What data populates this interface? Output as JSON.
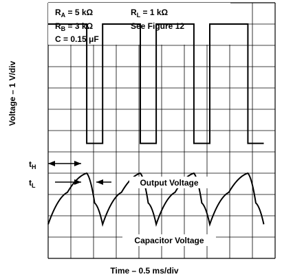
{
  "chart_data": {
    "type": "line",
    "title": "",
    "xlabel": "Time – 0.5 ms/div",
    "ylabel": "Voltage – 1 V/div",
    "grid": true,
    "divisions": {
      "x": 10,
      "y": 12
    },
    "conditions": {
      "ra": {
        "sym": "R",
        "sub": "A",
        "value": " = 5 kΩ"
      },
      "rb": {
        "sym": "R",
        "sub": "B",
        "value": " = 3 kΩ"
      },
      "c": "C = 0.15 μF",
      "rl": {
        "sym": "R",
        "sub": "L",
        "value": " = 1 kΩ"
      },
      "fig": "See Figure 12"
    },
    "annotations": {
      "th": {
        "sym": "t",
        "sub": "H"
      },
      "tl": {
        "sym": "t",
        "sub": "L"
      }
    },
    "series": [
      {
        "name": "Output Voltage",
        "color": "#000000",
        "x": [
          0,
          1.7,
          1.7,
          2.4,
          2.4,
          4.06,
          4.06,
          4.76,
          4.76,
          6.42,
          6.42,
          7.12,
          7.12,
          8.8,
          8.8,
          9.5
        ],
        "y": [
          11.0,
          11.0,
          5.4,
          5.4,
          11.0,
          11.0,
          5.4,
          5.4,
          11.0,
          11.0,
          5.4,
          5.4,
          11.0,
          11.0,
          5.4,
          5.4
        ]
      },
      {
        "name": "Capacitor Voltage",
        "color": "#000000",
        "x": [
          0,
          0.85,
          1.7,
          2.05,
          2.4,
          3.23,
          4.06,
          4.41,
          4.76,
          5.59,
          6.42,
          6.77,
          7.12,
          7.96,
          8.8,
          9.15,
          9.5
        ],
        "y": [
          1.6,
          3.1,
          4.0,
          2.6,
          1.6,
          3.1,
          4.0,
          2.6,
          1.6,
          3.1,
          4.0,
          2.6,
          1.6,
          3.1,
          4.0,
          2.6,
          1.6
        ]
      }
    ]
  }
}
